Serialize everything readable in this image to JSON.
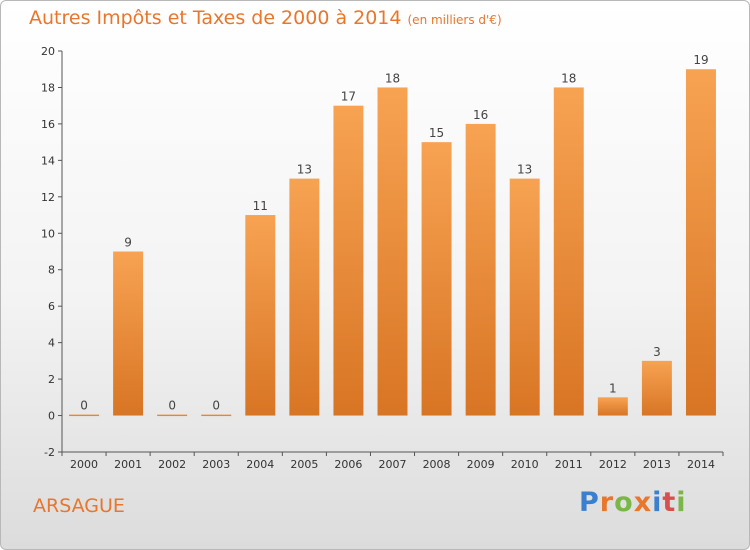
{
  "chart_data": {
    "type": "bar",
    "title": "Autres Impôts et Taxes de 2000 à 2014",
    "subtitle": "(en milliers d'€)",
    "categories": [
      "2000",
      "2001",
      "2002",
      "2003",
      "2004",
      "2005",
      "2006",
      "2007",
      "2008",
      "2009",
      "2010",
      "2011",
      "2012",
      "2013",
      "2014"
    ],
    "values": [
      0,
      9,
      0,
      0,
      11,
      13,
      17,
      18,
      15,
      16,
      13,
      18,
      1,
      3,
      19
    ],
    "ylim": [
      -2,
      20
    ],
    "yticks": [
      -2,
      0,
      2,
      4,
      6,
      8,
      10,
      12,
      14,
      16,
      18,
      20
    ],
    "xlabel": "",
    "ylabel": "",
    "grid": false,
    "bar_color_light": "#f7a352",
    "bar_color_dark": "#d87524"
  },
  "footer": {
    "commune": "ARSAGUE",
    "logo_letters": [
      "P",
      "r",
      "o",
      "x",
      "i",
      "t",
      "i"
    ],
    "logo_colors": [
      "#3b7fd0",
      "#e8762b",
      "#7ab648",
      "#e8762b",
      "#3b7fd0",
      "#d94f4f",
      "#7ab648"
    ]
  },
  "colors": {
    "title": "#e8762b",
    "axis": "#555555"
  }
}
